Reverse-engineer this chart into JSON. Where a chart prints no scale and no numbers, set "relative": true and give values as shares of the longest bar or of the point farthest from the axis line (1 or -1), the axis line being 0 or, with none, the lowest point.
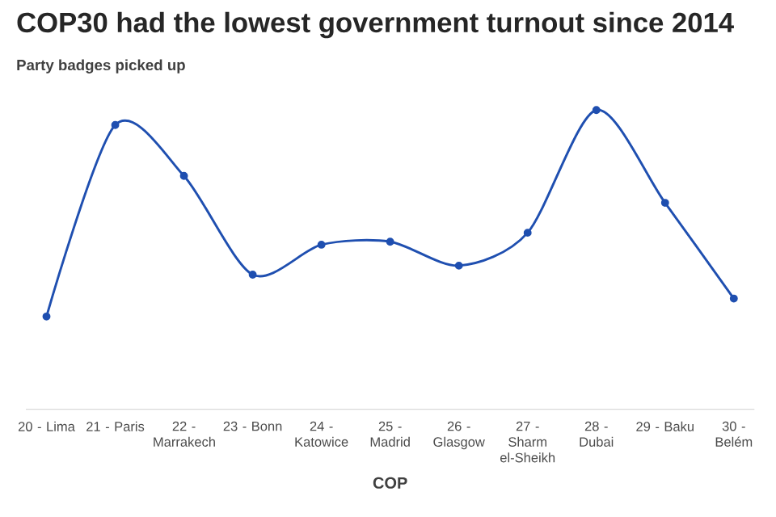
{
  "chart_data": {
    "type": "line",
    "title": "COP30 had the lowest government turnout since 2014",
    "subtitle": "Party badges picked up",
    "xlabel": "COP",
    "categories": [
      "20 - Lima",
      "21 - Paris",
      "22 - Marrakech",
      "23 - Bonn",
      "24 - Katowice",
      "25 - Madrid",
      "26 - Glasgow",
      "27 - Sharm el-Sheikh",
      "28 - Dubai",
      "29 - Baku",
      "30 - Belém"
    ],
    "relative": true,
    "marker": "circle",
    "line_style": "solid",
    "series": [
      {
        "color": "#1f4fb0",
        "values": [
          0.31,
          0.95,
          0.78,
          0.45,
          0.55,
          0.56,
          0.48,
          0.59,
          1,
          0.69,
          0.37
        ]
      }
    ]
  }
}
